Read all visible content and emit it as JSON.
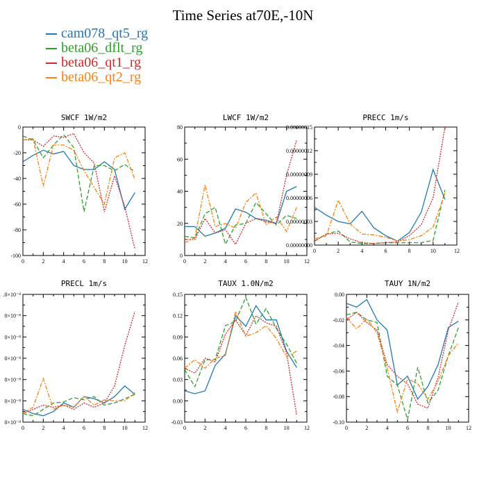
{
  "title": "Time Series at70E,-10N",
  "legend": [
    {
      "label": "cam078_qt5_rg",
      "color": "#1f77b4"
    },
    {
      "label": "beta06_dflt_rg",
      "color": "#2ca02c"
    },
    {
      "label": "beta06_qt1_rg",
      "color": "#d62728"
    },
    {
      "label": "beta06_qt2_rg",
      "color": "#ff7f0e"
    }
  ],
  "chart_data": [
    {
      "type": "line",
      "title": "SWCF   1W/m2",
      "x": [
        0,
        1,
        2,
        3,
        4,
        5,
        6,
        7,
        8,
        9,
        10,
        11
      ],
      "xlim": [
        0,
        12
      ],
      "xticks": [
        "0",
        "2",
        "4",
        "6",
        "8",
        "10",
        "12"
      ],
      "ylim": [
        -100,
        0
      ],
      "yticks": [
        "0",
        "-20",
        "-40",
        "-60",
        "-80",
        "-100"
      ],
      "series": [
        {
          "name": "cam078_qt5_rg",
          "values": [
            -27,
            -22,
            -18,
            -21,
            -19,
            -30,
            -33,
            -33,
            -27,
            -33,
            -64,
            -51
          ]
        },
        {
          "name": "beta06_dflt_rg",
          "values": [
            -7,
            -10,
            -24,
            -14,
            -6,
            -16,
            -66,
            -30,
            -30,
            -34,
            -29,
            -35
          ]
        },
        {
          "name": "beta06_qt1_rg",
          "values": [
            -10,
            -10,
            -15,
            -7,
            -8,
            -5,
            -20,
            -28,
            -66,
            -38,
            -62,
            -95
          ]
        },
        {
          "name": "beta06_qt2_rg",
          "values": [
            -10,
            -9,
            -46,
            -14,
            -14,
            -18,
            -34,
            -47,
            -60,
            -24,
            -20,
            -41
          ]
        }
      ]
    },
    {
      "type": "line",
      "title": "LWCF   1W/m2",
      "x": [
        0,
        1,
        2,
        3,
        4,
        5,
        6,
        7,
        8,
        9,
        10,
        11
      ],
      "xlim": [
        0,
        12
      ],
      "xticks": [
        "0",
        "2",
        "4",
        "6",
        "8",
        "10",
        "12"
      ],
      "ylim": [
        0,
        80
      ],
      "yticks": [
        "80",
        "60",
        "40",
        "20",
        "0"
      ],
      "series": [
        {
          "name": "cam078_qt5_rg",
          "values": [
            18,
            18,
            12,
            14,
            17,
            29,
            27,
            23,
            22,
            20,
            40,
            43
          ]
        },
        {
          "name": "beta06_dflt_rg",
          "values": [
            12,
            11,
            26,
            30,
            7,
            19,
            20,
            33,
            26,
            19,
            25,
            23
          ]
        },
        {
          "name": "beta06_qt1_rg",
          "values": [
            10,
            10,
            23,
            14,
            16,
            7,
            20,
            23,
            21,
            20,
            50,
            72
          ]
        },
        {
          "name": "beta06_qt2_rg",
          "values": [
            8,
            11,
            44,
            18,
            20,
            17,
            33,
            39,
            19,
            24,
            15,
            30
          ]
        }
      ]
    },
    {
      "type": "line",
      "title": "PRECC   1m/s",
      "x": [
        0,
        1,
        2,
        3,
        4,
        5,
        6,
        7,
        8,
        9,
        10,
        11
      ],
      "xlim": [
        0,
        12
      ],
      "xticks": [
        "0",
        "2",
        "4",
        "6",
        "8",
        "10",
        "12"
      ],
      "ylim": [
        0,
        1.5e-07
      ],
      "yticks": [
        "0.00000015",
        "0.00000012",
        "0.00000009",
        "0.00000006",
        "0.00000003",
        "0.00000000"
      ],
      "series": [
        {
          "name": "cam078_qt5_rg",
          "values": [
            4.8e-08,
            3.8e-08,
            3e-08,
            2.7e-08,
            4.3e-08,
            2.2e-08,
            1.2e-08,
            5e-09,
            1.6e-08,
            4.2e-08,
            9.6e-08,
            5.8e-08
          ]
        },
        {
          "name": "beta06_dflt_rg",
          "values": [
            5e-09,
            1.4e-08,
            1.8e-08,
            4e-09,
            2e-09,
            2e-09,
            3e-09,
            3e-09,
            3e-09,
            3e-09,
            6e-09,
            7e-08
          ]
        },
        {
          "name": "beta06_qt1_rg",
          "values": [
            5e-09,
            1.4e-08,
            1.5e-08,
            8e-09,
            3e-09,
            2e-09,
            3e-09,
            4e-09,
            1.2e-08,
            2.6e-08,
            6e-08,
            1.5e-07
          ]
        },
        {
          "name": "beta06_qt2_rg",
          "values": [
            8e-09,
            1.2e-08,
            5.7e-08,
            2.7e-08,
            1.4e-08,
            1.3e-08,
            1e-08,
            5e-09,
            7e-09,
            1.2e-08,
            2.3e-08,
            6.6e-08
          ]
        }
      ]
    },
    {
      "type": "line",
      "title": "PRECL   1m/s",
      "x": [
        0,
        1,
        2,
        3,
        4,
        5,
        6,
        7,
        8,
        9,
        10,
        11
      ],
      "xlim": [
        0,
        12
      ],
      "xticks": [
        "0",
        "2",
        "4",
        "6",
        "8",
        "10",
        "12"
      ],
      "ylim": [
        0,
        1.2e-08
      ],
      "yticks": [
        ".0×10⁻⁸",
        "0×10⁻⁸",
        "0×10⁻⁸",
        "0×10⁻⁸",
        "0×10⁻⁸",
        "0×10⁻⁸",
        "0×10⁻⁸"
      ],
      "series": [
        {
          "name": "cam078_qt5_rg",
          "values": [
            1.2e-09,
            8e-10,
            6e-10,
            1e-09,
            1.8e-09,
            1.4e-09,
            2.4e-09,
            2.2e-09,
            1.8e-09,
            2.4e-09,
            3.4e-09,
            2.6e-09
          ]
        },
        {
          "name": "beta06_dflt_rg",
          "values": [
            8e-10,
            6e-10,
            1.2e-09,
            1.8e-09,
            1.9e-09,
            2.3e-09,
            2.1e-09,
            2.4e-09,
            1.6e-09,
            1.8e-09,
            2.2e-09,
            2.6e-09
          ]
        },
        {
          "name": "beta06_qt1_rg",
          "values": [
            8e-10,
            1.2e-09,
            1.6e-09,
            1.4e-09,
            1.6e-09,
            1.2e-09,
            1.8e-09,
            1.4e-09,
            1.8e-09,
            3.4e-09,
            7.2e-09,
            1.04e-08
          ]
        },
        {
          "name": "beta06_qt2_rg",
          "values": [
            8e-10,
            1.4e-09,
            4.1e-09,
            1.2e-09,
            1.6e-09,
            1.4e-09,
            2.4e-09,
            1.6e-09,
            2.1e-09,
            2e-09,
            2e-09,
            2.8e-09
          ]
        }
      ]
    },
    {
      "type": "line",
      "title": "TAUX   1.0N/m2",
      "x": [
        0,
        1,
        2,
        3,
        4,
        5,
        6,
        7,
        8,
        9,
        10,
        11
      ],
      "xlim": [
        0,
        12
      ],
      "xticks": [
        "0",
        "2",
        "4",
        "6",
        "8",
        "10",
        "12"
      ],
      "ylim": [
        -0.03,
        0.15
      ],
      "yticks": [
        "0.15",
        "0.12",
        "0.09",
        "0.06",
        "0.03",
        "0.00",
        "-0.03"
      ],
      "series": [
        {
          "name": "cam078_qt5_rg",
          "values": [
            0.014,
            0.01,
            0.014,
            0.05,
            0.066,
            0.12,
            0.105,
            0.134,
            0.114,
            0.114,
            0.07,
            0.047
          ]
        },
        {
          "name": "beta06_dflt_rg",
          "values": [
            0.044,
            0.02,
            0.058,
            0.058,
            0.106,
            0.112,
            0.146,
            0.108,
            0.13,
            0.102,
            0.08,
            0.053
          ]
        },
        {
          "name": "beta06_qt1_rg",
          "values": [
            0.046,
            0.039,
            0.06,
            0.055,
            0.094,
            0.114,
            0.092,
            0.12,
            0.11,
            0.105,
            0.068,
            -0.02
          ]
        },
        {
          "name": "beta06_qt2_rg",
          "values": [
            0.046,
            0.058,
            0.046,
            0.06,
            0.064,
            0.126,
            0.091,
            0.096,
            0.106,
            0.088,
            0.062,
            0.07
          ]
        }
      ]
    },
    {
      "type": "line",
      "title": "TAUY   1N/m2",
      "x": [
        0,
        1,
        2,
        3,
        4,
        5,
        6,
        7,
        8,
        9,
        10,
        11
      ],
      "xlim": [
        0,
        12
      ],
      "xticks": [
        "0",
        "2",
        "4",
        "6",
        "8",
        "10",
        "12"
      ],
      "ylim": [
        -0.1,
        0
      ],
      "yticks": [
        "0.00",
        "-0.02",
        "-0.04",
        "-0.06",
        "-0.08",
        "-0.10"
      ],
      "series": [
        {
          "name": "cam078_qt5_rg",
          "values": [
            -0.007,
            -0.01,
            -0.004,
            -0.02,
            -0.028,
            -0.071,
            -0.064,
            -0.082,
            -0.072,
            -0.055,
            -0.026,
            -0.021
          ]
        },
        {
          "name": "beta06_dflt_rg",
          "values": [
            -0.016,
            -0.014,
            -0.02,
            -0.022,
            -0.064,
            -0.071,
            -0.098,
            -0.057,
            -0.085,
            -0.075,
            -0.048,
            -0.026
          ]
        },
        {
          "name": "beta06_qt1_rg",
          "values": [
            -0.02,
            -0.014,
            -0.022,
            -0.028,
            -0.055,
            -0.064,
            -0.07,
            -0.086,
            -0.089,
            -0.065,
            -0.028,
            -0.006
          ]
        },
        {
          "name": "beta06_qt2_rg",
          "values": [
            -0.018,
            -0.027,
            -0.019,
            -0.03,
            -0.058,
            -0.092,
            -0.066,
            -0.07,
            -0.082,
            -0.068,
            -0.048,
            -0.038
          ]
        }
      ]
    }
  ]
}
